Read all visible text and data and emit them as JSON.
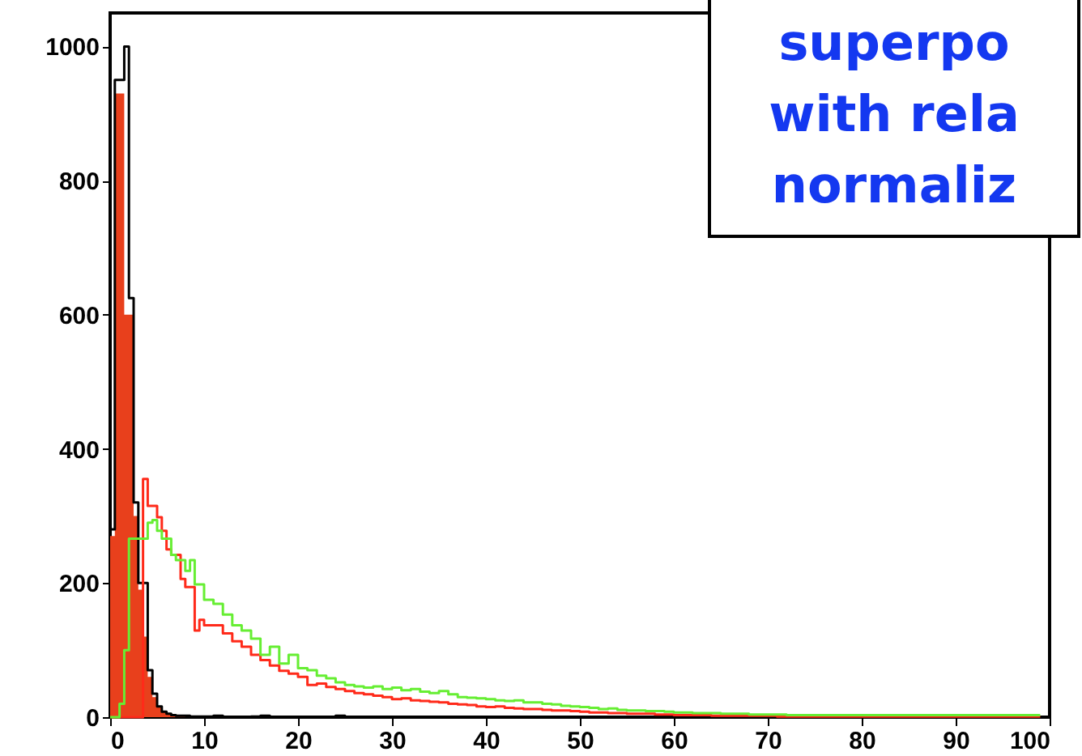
{
  "chart_data": {
    "type": "step",
    "annotations": [
      "superpo\nwith rela\nnormaliz"
    ],
    "x": [
      0,
      0.5,
      1,
      1.5,
      2,
      2.5,
      3,
      3.5,
      4,
      4.5,
      5,
      5.5,
      6,
      6.5,
      7,
      7.5,
      8,
      8.5,
      9,
      9.5,
      10,
      11,
      12,
      13,
      14,
      15,
      16,
      17,
      18,
      19,
      20,
      21,
      22,
      23,
      24,
      25,
      26,
      27,
      28,
      29,
      30,
      31,
      32,
      33,
      34,
      35,
      36,
      37,
      38,
      39,
      40,
      41,
      42,
      43,
      44,
      45,
      46,
      47,
      48,
      49,
      50,
      51,
      52,
      53,
      54,
      55,
      56,
      57,
      58,
      59,
      60,
      61,
      62,
      63,
      64,
      65,
      66,
      67,
      68,
      69,
      70,
      71,
      72,
      73,
      74,
      75,
      76,
      77,
      78,
      79,
      80,
      81,
      82,
      83,
      84,
      85,
      86,
      87,
      88,
      89,
      90,
      91,
      92,
      93,
      94,
      95,
      96,
      97,
      98,
      99
    ],
    "series": [
      {
        "type": "area",
        "color": "#e8401c",
        "values": [
          270,
          930,
          930,
          600,
          600,
          300,
          190,
          120,
          60,
          30,
          15,
          8,
          4,
          2,
          1,
          1,
          0,
          0,
          0,
          0,
          0,
          0,
          0,
          0,
          0,
          0,
          0,
          0,
          0,
          0,
          0,
          0,
          0,
          0,
          0,
          0,
          0,
          0,
          0,
          0,
          0,
          0,
          0,
          0,
          0,
          0,
          0,
          0,
          0,
          0,
          0,
          0,
          0,
          0,
          0,
          0,
          0,
          0,
          0,
          0,
          0,
          0,
          0,
          0,
          0,
          0,
          0,
          0,
          0,
          0,
          0,
          0,
          0,
          0,
          0,
          0,
          0,
          0,
          0,
          0,
          0,
          0,
          0,
          0,
          0,
          0,
          0,
          0,
          0,
          0,
          0,
          0,
          0,
          0,
          0,
          0,
          0,
          0,
          0,
          0,
          0,
          0,
          0,
          0,
          0,
          0,
          0,
          0,
          0,
          0
        ]
      },
      {
        "color": "#000000",
        "values": [
          280,
          950,
          950,
          1000,
          625,
          320,
          200,
          200,
          70,
          35,
          16,
          8,
          5,
          3,
          2,
          2,
          2,
          1,
          1,
          1,
          1,
          2,
          0,
          0,
          0,
          1,
          2,
          0,
          0,
          0,
          0,
          0,
          0,
          0,
          2,
          0,
          0,
          0,
          0,
          0,
          0,
          0,
          0,
          0,
          0,
          0,
          0,
          0,
          0,
          0,
          0,
          0,
          0,
          0,
          0,
          0,
          0,
          0,
          0,
          0,
          0,
          0,
          0,
          0,
          0,
          0,
          0,
          0,
          0,
          0,
          0,
          0,
          0,
          0,
          0,
          0,
          0,
          0,
          0,
          0,
          0,
          0,
          0,
          0,
          0,
          0,
          0,
          0,
          0,
          0,
          0,
          0,
          0,
          0,
          0,
          0,
          0,
          0,
          0,
          0,
          0,
          0,
          0,
          0,
          0,
          0,
          0,
          0,
          0,
          0
        ]
      },
      {
        "color": "#ff2a1a",
        "values": [
          0,
          0,
          0,
          0,
          0,
          0,
          0,
          355,
          315,
          315,
          298,
          278,
          250,
          242,
          242,
          206,
          194,
          194,
          129,
          145,
          137,
          137,
          125,
          113,
          105,
          93,
          85,
          77,
          69,
          65,
          60,
          48,
          50,
          45,
          42,
          39,
          36,
          34,
          32,
          30,
          27,
          28,
          25,
          24,
          23,
          22,
          20,
          19,
          18,
          16,
          15,
          16,
          14,
          13,
          12,
          12,
          11,
          10,
          10,
          9,
          8,
          7,
          7,
          6,
          6,
          5,
          5,
          5,
          4,
          4,
          3,
          3,
          3,
          3,
          2,
          2,
          2,
          2,
          2,
          2,
          2,
          1,
          1,
          1,
          1,
          1,
          1,
          1,
          1,
          1,
          1,
          1,
          1,
          1,
          1,
          1,
          1,
          1,
          1,
          1,
          1,
          1,
          1,
          1,
          1,
          1,
          1,
          1,
          1,
          1
        ]
      },
      {
        "color": "#66ee33",
        "values": [
          0,
          0,
          20,
          100,
          266,
          266,
          266,
          266,
          290,
          294,
          278,
          266,
          266,
          242,
          234,
          234,
          218,
          234,
          198,
          198,
          175,
          169,
          153,
          137,
          129,
          117,
          93,
          105,
          80,
          93,
          73,
          70,
          62,
          58,
          52,
          48,
          46,
          44,
          46,
          42,
          44,
          40,
          42,
          38,
          36,
          39,
          34,
          30,
          29,
          28,
          27,
          25,
          24,
          25,
          22,
          22,
          20,
          19,
          17,
          16,
          15,
          14,
          12,
          13,
          11,
          10,
          10,
          9,
          9,
          8,
          7,
          7,
          6,
          6,
          6,
          5,
          5,
          5,
          4,
          4,
          4,
          4,
          3,
          3,
          3,
          3,
          3,
          3,
          3,
          3,
          3,
          3,
          3,
          3,
          3,
          3,
          3,
          3,
          3,
          3,
          3,
          3,
          3,
          3,
          3,
          3,
          3,
          3,
          3,
          3
        ]
      }
    ],
    "xlim": [
      0,
      100
    ],
    "xticks": [
      0,
      10,
      20,
      30,
      40,
      50,
      60,
      70,
      80,
      90,
      100
    ],
    "ylim": [
      0,
      1050
    ],
    "yticks": [
      0,
      200,
      400,
      600,
      800,
      1000
    ],
    "grid": false
  }
}
